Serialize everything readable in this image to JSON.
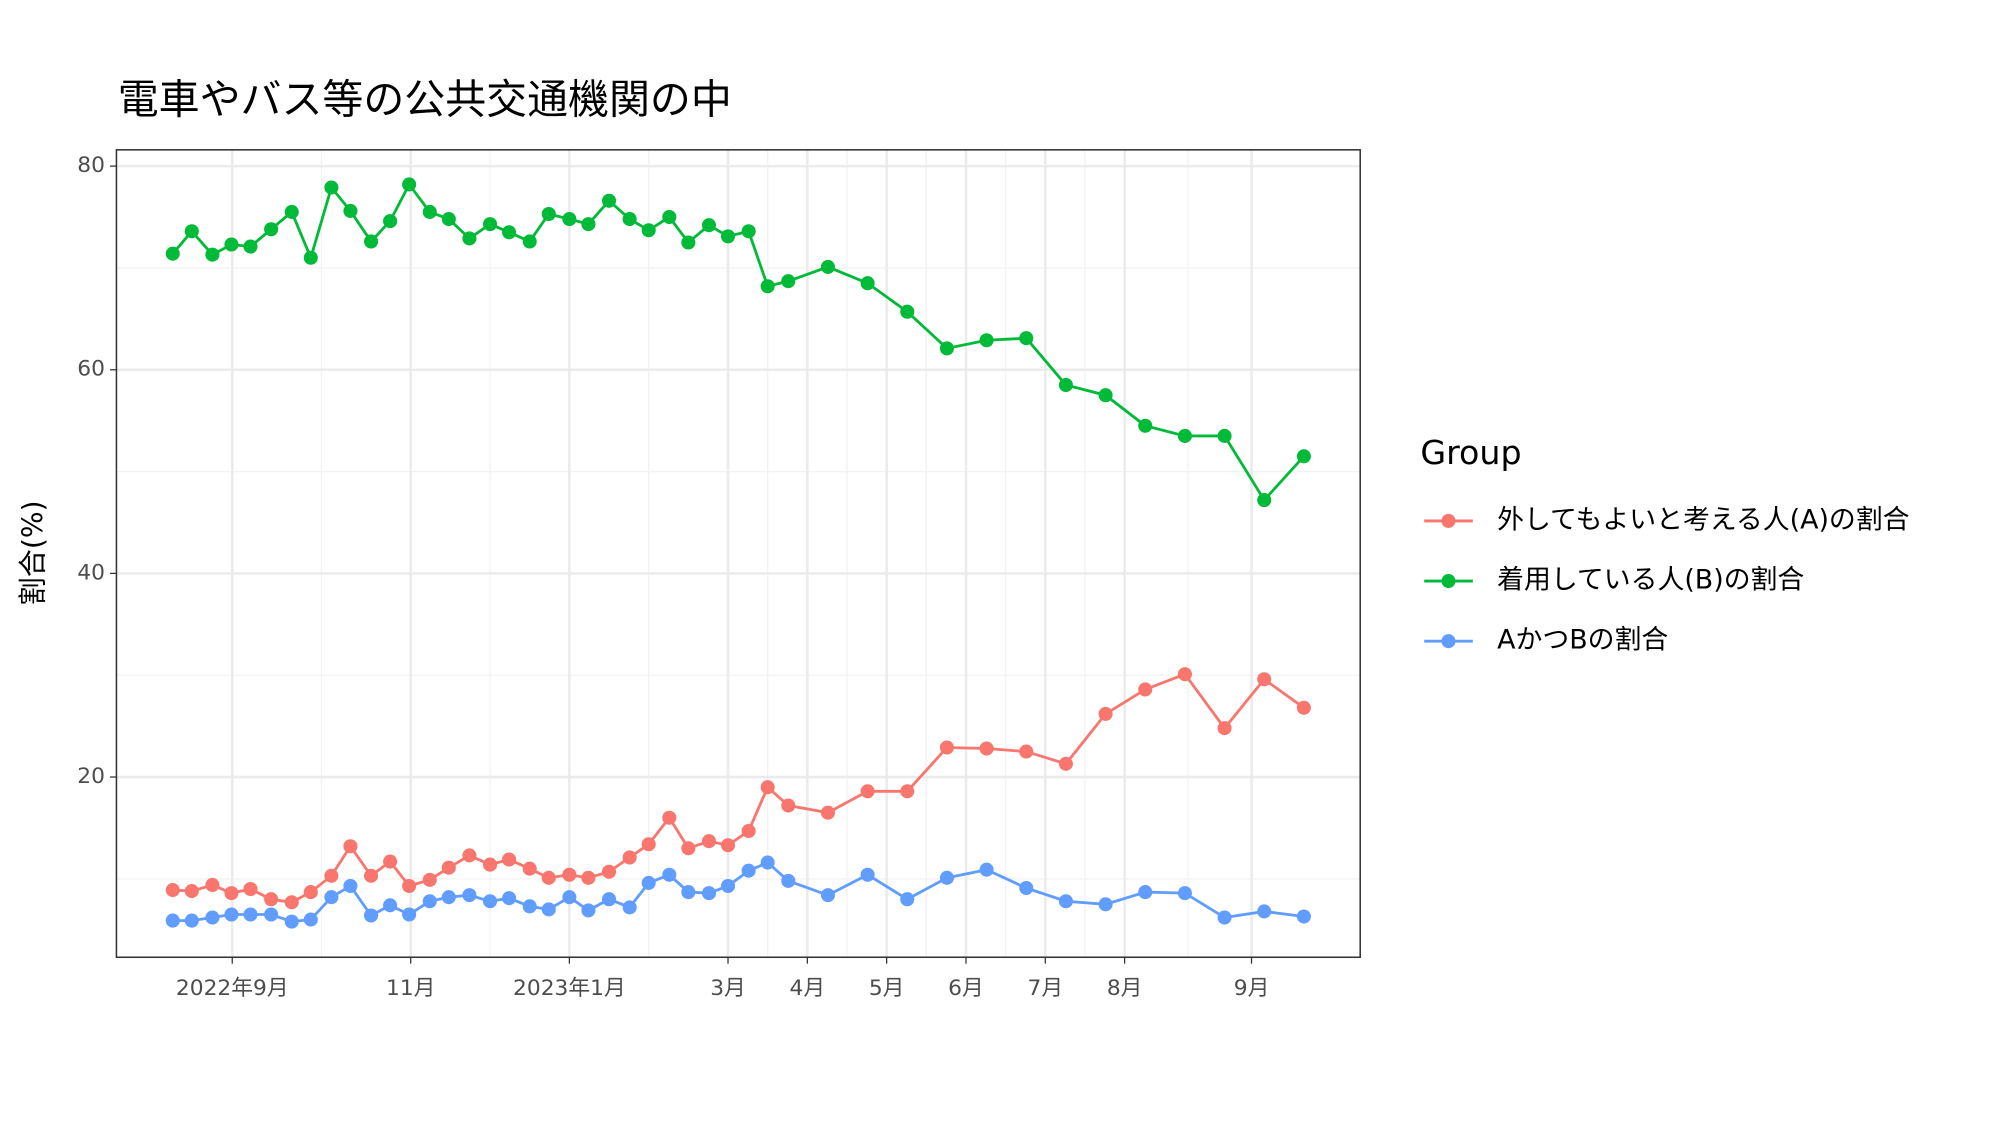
{
  "chart_data": {
    "type": "line",
    "title": "電車やバス等の公共交通機関の中",
    "y_label": "割合(%)",
    "legend_title": "Group",
    "legend": "right",
    "grid": true,
    "x": [
      8.0,
      8.24,
      8.5,
      8.74,
      8.98,
      9.24,
      9.5,
      9.74,
      10.0,
      10.24,
      10.5,
      10.74,
      10.98,
      11.24,
      11.48,
      11.74,
      12.0,
      12.24,
      12.5,
      12.74,
      13.0,
      13.24,
      13.5,
      13.76,
      14.0,
      14.26,
      14.5,
      14.76,
      15.0,
      15.26,
      15.5,
      15.76,
      16.26,
      16.76,
      17.26,
      17.76,
      18.26,
      18.76,
      19.26,
      19.76,
      20.26,
      20.76,
      21.26,
      21.76,
      22.26
    ],
    "xlim": [
      7.29,
      22.97
    ],
    "xticks": [
      {
        "value": 8.75,
        "label": "2022年9月"
      },
      {
        "value": 11,
        "label": "11月"
      },
      {
        "value": 13,
        "label": "2023年1月"
      },
      {
        "value": 15,
        "label": "3月"
      },
      {
        "value": 16,
        "label": "4月"
      },
      {
        "value": 17,
        "label": "5月"
      },
      {
        "value": 18,
        "label": "6月"
      },
      {
        "value": 19,
        "label": "7月"
      },
      {
        "value": 20,
        "label": "8月"
      },
      {
        "value": 21.6,
        "label": "9月"
      }
    ],
    "ylim": [
      2.3,
      81.6
    ],
    "yticks": [
      20,
      40,
      60,
      80
    ],
    "series": [
      {
        "name": "外してもよいと考える人(A)の割合",
        "color": "#F8766D",
        "values": [
          8.9,
          8.8,
          9.4,
          8.6,
          9.0,
          8.0,
          7.7,
          8.7,
          10.3,
          13.2,
          10.3,
          11.7,
          9.3,
          9.9,
          11.1,
          12.3,
          11.4,
          11.9,
          11.0,
          10.1,
          10.4,
          10.1,
          10.7,
          12.1,
          13.4,
          16.0,
          13.0,
          13.7,
          13.3,
          14.7,
          19.0,
          17.2,
          16.5,
          18.6,
          18.6,
          22.9,
          22.8,
          22.5,
          21.3,
          26.2,
          28.6,
          30.1,
          24.8,
          29.6,
          26.8
        ]
      },
      {
        "name": "着用している人(B)の割合",
        "color": "#00BA38",
        "values": [
          71.4,
          73.6,
          71.3,
          72.3,
          72.1,
          73.8,
          75.5,
          71.0,
          77.9,
          75.6,
          72.6,
          74.6,
          78.2,
          75.5,
          74.8,
          72.9,
          74.3,
          73.5,
          72.6,
          75.3,
          74.8,
          74.3,
          76.6,
          74.8,
          73.7,
          75.0,
          72.5,
          74.2,
          73.1,
          73.6,
          68.2,
          68.7,
          70.1,
          68.5,
          65.7,
          62.1,
          62.9,
          63.1,
          58.5,
          57.5,
          54.5,
          53.5,
          53.5,
          47.2,
          51.5
        ]
      },
      {
        "name": "AかつBの割合",
        "color": "#619CFF",
        "values": [
          5.9,
          5.9,
          6.2,
          6.5,
          6.5,
          6.5,
          5.8,
          6.0,
          8.2,
          9.3,
          6.4,
          7.4,
          6.5,
          7.8,
          8.2,
          8.4,
          7.8,
          8.1,
          7.3,
          7.0,
          8.2,
          6.9,
          8.0,
          7.2,
          9.6,
          10.4,
          8.7,
          8.6,
          9.3,
          10.8,
          11.6,
          9.8,
          8.4,
          10.4,
          8.0,
          10.1,
          10.9,
          9.1,
          7.8,
          7.5,
          8.7,
          8.6,
          6.2,
          6.8,
          6.3
        ]
      }
    ]
  }
}
